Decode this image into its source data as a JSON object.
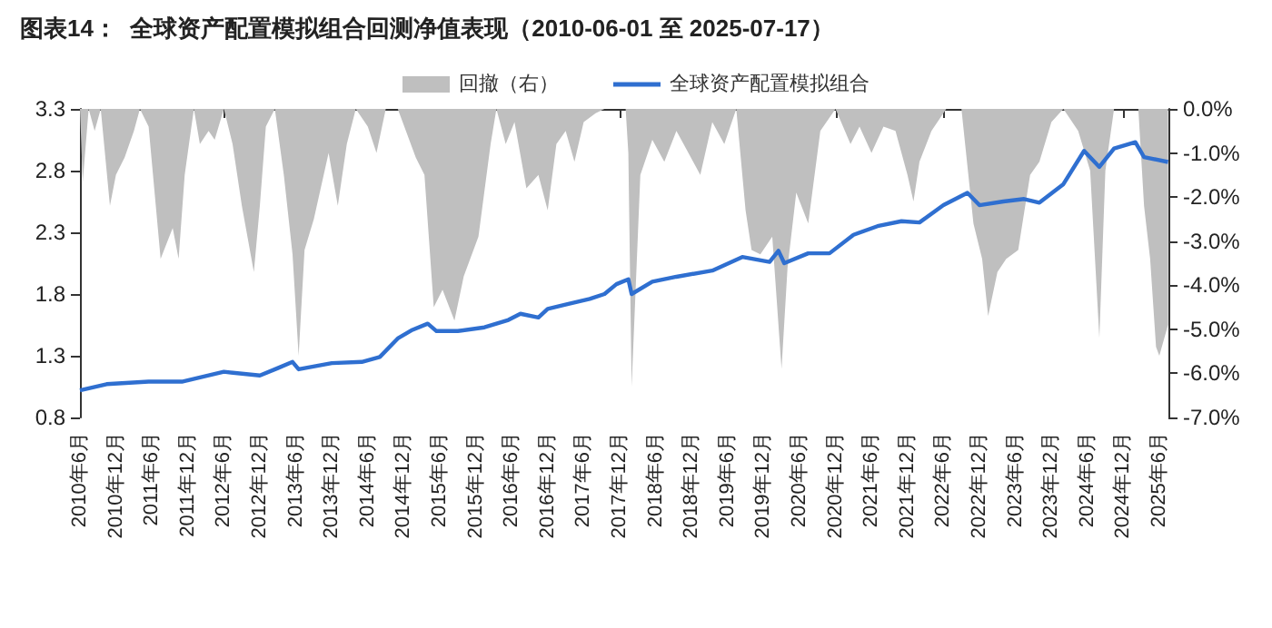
{
  "chart_data": {
    "type": "line",
    "title": "图表14：  全球资产配置模拟组合回测净值表现（2010-06-01 至 2025-07-17）",
    "xlim": [
      "2010-06-01",
      "2025-07-17"
    ],
    "xticks": [
      {
        "value": "2010-06",
        "label": "2010年6月"
      },
      {
        "value": "2010-12",
        "label": "2010年12月"
      },
      {
        "value": "2011-06",
        "label": "2011年6月"
      },
      {
        "value": "2011-12",
        "label": "2011年12月"
      },
      {
        "value": "2012-06",
        "label": "2012年6月"
      },
      {
        "value": "2012-12",
        "label": "2012年12月"
      },
      {
        "value": "2013-06",
        "label": "2013年6月"
      },
      {
        "value": "2013-12",
        "label": "2013年12月"
      },
      {
        "value": "2014-06",
        "label": "2014年6月"
      },
      {
        "value": "2014-12",
        "label": "2014年12月"
      },
      {
        "value": "2015-06",
        "label": "2015年6月"
      },
      {
        "value": "2015-12",
        "label": "2015年12月"
      },
      {
        "value": "2016-06",
        "label": "2016年6月"
      },
      {
        "value": "2016-12",
        "label": "2016年12月"
      },
      {
        "value": "2017-06",
        "label": "2017年6月"
      },
      {
        "value": "2017-12",
        "label": "2017年12月"
      },
      {
        "value": "2018-06",
        "label": "2018年6月"
      },
      {
        "value": "2018-12",
        "label": "2018年12月"
      },
      {
        "value": "2019-06",
        "label": "2019年6月"
      },
      {
        "value": "2019-12",
        "label": "2019年12月"
      },
      {
        "value": "2020-06",
        "label": "2020年6月"
      },
      {
        "value": "2020-12",
        "label": "2020年12月"
      },
      {
        "value": "2021-06",
        "label": "2021年6月"
      },
      {
        "value": "2021-12",
        "label": "2021年12月"
      },
      {
        "value": "2022-06",
        "label": "2022年6月"
      },
      {
        "value": "2022-12",
        "label": "2022年12月"
      },
      {
        "value": "2023-06",
        "label": "2023年6月"
      },
      {
        "value": "2023-12",
        "label": "2023年12月"
      },
      {
        "value": "2024-06",
        "label": "2024年6月"
      },
      {
        "value": "2024-12",
        "label": "2024年12月"
      },
      {
        "value": "2025-06",
        "label": "2025年6月"
      }
    ],
    "ylim": [
      0.8,
      3.3
    ],
    "yticks": [
      0.8,
      1.3,
      1.8,
      2.3,
      2.8,
      3.3
    ],
    "y2lim": [
      -7,
      0
    ],
    "y2ticks": [
      {
        "value": -7,
        "label": "-7.0%"
      },
      {
        "value": -6,
        "label": "-6.0%"
      },
      {
        "value": -5,
        "label": "-5.0%"
      },
      {
        "value": -4,
        "label": "-4.0%"
      },
      {
        "value": -3,
        "label": "-3.0%"
      },
      {
        "value": -2,
        "label": "-2.0%"
      },
      {
        "value": -1,
        "label": "-1.0%"
      },
      {
        "value": 0,
        "label": "0.0%"
      }
    ],
    "grid": false,
    "legend": "top",
    "marker": "none",
    "line_style": "solid",
    "series": [
      {
        "name": "回撤（右）",
        "type": "area",
        "axis": "y2",
        "color": "#bfbfbf",
        "x": [
          "2010-06-01",
          "2010-06-15",
          "2010-07-15",
          "2010-08-15",
          "2010-09-15",
          "2010-11-01",
          "2010-12-01",
          "2011-01-15",
          "2011-03-01",
          "2011-04-01",
          "2011-05-15",
          "2011-07-15",
          "2011-09-15",
          "2011-10-15",
          "2011-11-15",
          "2012-01-01",
          "2012-02-01",
          "2012-03-15",
          "2012-04-15",
          "2012-06-01",
          "2012-07-15",
          "2012-09-01",
          "2012-11-01",
          "2012-12-01",
          "2013-01-01",
          "2013-02-15",
          "2013-04-01",
          "2013-05-15",
          "2013-06-15",
          "2013-07-15",
          "2013-09-01",
          "2013-11-15",
          "2014-01-01",
          "2014-02-15",
          "2014-04-01",
          "2014-06-01",
          "2014-07-15",
          "2014-09-01",
          "2014-11-01",
          "2015-02-01",
          "2015-03-15",
          "2015-05-01",
          "2015-06-15",
          "2015-08-15",
          "2015-10-01",
          "2015-12-15",
          "2016-02-15",
          "2016-03-15",
          "2016-05-01",
          "2016-06-15",
          "2016-08-15",
          "2016-10-15",
          "2016-12-01",
          "2017-01-15",
          "2017-03-01",
          "2017-04-15",
          "2017-06-01",
          "2017-08-01",
          "2017-09-15",
          "2018-01-01",
          "2018-01-15",
          "2018-02-01",
          "2018-03-15",
          "2018-05-15",
          "2018-07-15",
          "2018-09-15",
          "2018-11-15",
          "2019-01-15",
          "2019-03-15",
          "2019-05-15",
          "2019-07-15",
          "2019-09-01",
          "2019-10-01",
          "2019-11-15",
          "2020-01-15",
          "2020-03-01",
          "2020-04-01",
          "2020-05-15",
          "2020-07-15",
          "2020-09-15",
          "2020-12-01",
          "2021-02-15",
          "2021-04-01",
          "2021-06-01",
          "2021-08-01",
          "2021-10-01",
          "2021-12-01",
          "2022-01-01",
          "2022-02-01",
          "2022-04-01",
          "2022-06-15",
          "2022-09-01",
          "2022-11-01",
          "2022-12-15",
          "2023-01-15",
          "2023-03-01",
          "2023-04-15",
          "2023-06-15",
          "2023-08-15",
          "2023-10-01",
          "2023-12-01",
          "2024-02-01",
          "2024-04-15",
          "2024-06-15",
          "2024-08-01",
          "2024-09-01",
          "2024-10-15",
          "2024-12-15",
          "2025-02-15",
          "2025-03-15",
          "2025-04-15",
          "2025-05-15",
          "2025-06-01",
          "2025-07-15"
        ],
        "values": [
          0,
          -1.65,
          0,
          -0.5,
          0,
          -2.2,
          -1.5,
          -1.1,
          -0.5,
          0,
          -0.4,
          -3.4,
          -2.7,
          -3.4,
          -1.5,
          0,
          -0.8,
          -0.5,
          -0.7,
          0,
          -0.8,
          -2.2,
          -3.7,
          -2.2,
          -0.4,
          0,
          -1.5,
          -3.3,
          -5.6,
          -3.2,
          -2.5,
          -1.0,
          -2.2,
          -0.8,
          0,
          -0.4,
          -1.0,
          0,
          0,
          -1.1,
          -1.5,
          -4.5,
          -4.1,
          -4.8,
          -3.8,
          -2.9,
          -0.8,
          0,
          -0.8,
          -0.3,
          -1.8,
          -1.5,
          -2.3,
          -0.8,
          -0.5,
          -1.2,
          -0.3,
          -0.1,
          0,
          0,
          -1.0,
          -6.3,
          -1.5,
          -0.7,
          -1.2,
          -0.5,
          -1.0,
          -1.5,
          -0.3,
          -0.8,
          0,
          -2.3,
          -3.2,
          -3.3,
          -2.9,
          -5.9,
          -3.6,
          -1.9,
          -2.6,
          -0.5,
          0,
          -0.8,
          -0.4,
          -1.0,
          -0.4,
          -0.5,
          -1.5,
          -2.1,
          -1.2,
          -0.5,
          0,
          0,
          -2.6,
          -3.4,
          -4.7,
          -3.7,
          -3.4,
          -3.2,
          -1.5,
          -1.2,
          -0.3,
          0,
          -0.5,
          -1.4,
          -5.2,
          -1.4,
          0,
          0,
          0,
          -2.2,
          -3.4,
          -5.4,
          -5.6,
          -4.9
        ]
      },
      {
        "name": "全球资产配置模拟组合",
        "color": "#2f6fd0",
        "x": [
          "2010-06-01",
          "2010-10-15",
          "2011-05-15",
          "2011-11-01",
          "2012-06-01",
          "2012-12-01",
          "2013-03-01",
          "2013-05-15",
          "2013-06-15",
          "2013-12-01",
          "2014-05-01",
          "2014-08-01",
          "2014-11-01",
          "2015-01-15",
          "2015-04-01",
          "2015-05-15",
          "2015-09-01",
          "2016-01-15",
          "2016-05-15",
          "2016-07-15",
          "2016-10-15",
          "2016-12-01",
          "2017-03-15",
          "2017-07-01",
          "2017-09-15",
          "2017-11-15",
          "2018-01-15",
          "2018-02-01",
          "2018-05-15",
          "2018-09-15",
          "2019-03-15",
          "2019-08-15",
          "2020-01-01",
          "2020-02-15",
          "2020-03-15",
          "2020-07-15",
          "2020-11-01",
          "2021-03-01",
          "2021-07-01",
          "2021-11-01",
          "2022-02-01",
          "2022-06-01",
          "2022-10-01",
          "2022-12-01",
          "2023-04-01",
          "2023-07-15",
          "2023-10-01",
          "2024-02-01",
          "2024-05-15",
          "2024-08-01",
          "2024-10-15",
          "2025-02-01",
          "2025-03-15",
          "2025-07-15"
        ],
        "values": [
          1.02,
          1.07,
          1.09,
          1.09,
          1.17,
          1.14,
          1.2,
          1.25,
          1.19,
          1.24,
          1.25,
          1.29,
          1.44,
          1.51,
          1.56,
          1.5,
          1.5,
          1.53,
          1.59,
          1.64,
          1.61,
          1.68,
          1.72,
          1.76,
          1.8,
          1.88,
          1.92,
          1.8,
          1.9,
          1.94,
          1.99,
          2.1,
          2.06,
          2.15,
          2.05,
          2.13,
          2.13,
          2.28,
          2.35,
          2.39,
          2.38,
          2.52,
          2.62,
          2.52,
          2.55,
          2.57,
          2.54,
          2.69,
          2.96,
          2.83,
          2.98,
          3.03,
          2.91,
          2.87
        ]
      }
    ]
  }
}
